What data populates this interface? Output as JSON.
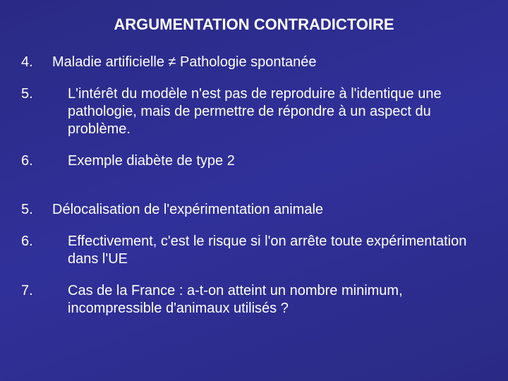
{
  "title": "ARGUMENTATION CONTRADICTOIRE",
  "items": [
    {
      "num": "4.",
      "text": "Maladie artificielle ≠ Pathologie spontanée",
      "sub": false
    },
    {
      "num": "5.",
      "text": "L'intérêt du modèle n'est pas de reproduire à l'identique une pathologie, mais de permettre de répondre à un aspect du problème.",
      "sub": true
    },
    {
      "num": "6.",
      "text": "Exemple diabète de type 2",
      "sub": true
    }
  ],
  "items2": [
    {
      "num": "5.",
      "text": "Délocalisation de l'expérimentation animale",
      "sub": false
    },
    {
      "num": "6.",
      "text": "Effectivement, c'est le risque si l'on arrête toute expérimentation dans l'UE",
      "sub": true
    },
    {
      "num": "7.",
      "text": "Cas de la France : a-t-on atteint un nombre minimum, incompressible d'animaux utilisés ?",
      "sub": true
    }
  ],
  "colors": {
    "background": "#2c2c8a",
    "text": "#ffffff"
  },
  "fontsize": {
    "title": 22,
    "body": 20
  }
}
